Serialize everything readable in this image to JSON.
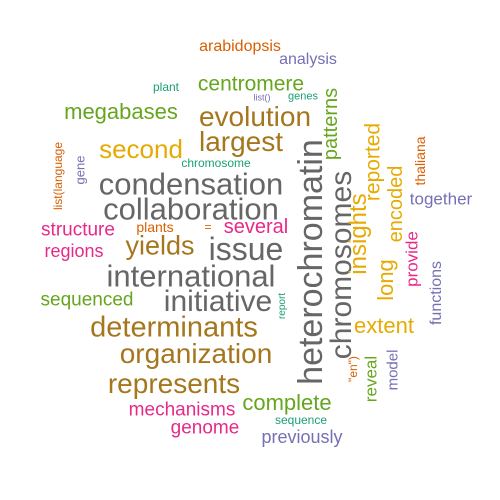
{
  "words": {
    "arabidopsis": "arabidopsis",
    "analysis": "analysis",
    "plant": "plant",
    "centromere": "centromere",
    "list_empty": "list()",
    "genes": "genes",
    "megabases": "megabases",
    "evolution": "evolution",
    "largest": "largest",
    "second": "second",
    "chromosome": "chromosome",
    "condensation": "condensation",
    "collaboration": "collaboration",
    "structure": "structure",
    "plants": "plants",
    "equals": "=",
    "several": "several",
    "regions": "regions",
    "yields": "yields",
    "issue": "issue",
    "international": "international",
    "initiative": "initiative",
    "sequenced": "sequenced",
    "determinants": "determinants",
    "organization": "organization",
    "represents": "represents",
    "mechanisms": "mechanisms",
    "genome": "genome",
    "complete": "complete",
    "sequence": "sequence",
    "previously": "previously",
    "together": "together",
    "functions": "functions",
    "list_language": "list(language",
    "gene": "gene",
    "report": "report",
    "heterochromatin": "heterochromatin",
    "chromosomes": "chromosomes",
    "patterns": "patterns",
    "insights": "insights",
    "reported": "reported",
    "long": "long",
    "encoded": "encoded",
    "thaliana": "thaliana",
    "provide": "provide",
    "extent": "extent",
    "en_quote": "\"en\")",
    "reveal": "reveal",
    "model": "model"
  },
  "colors": {
    "pink": "#e7298a",
    "orange": "#d95f02",
    "gold": "#e6ab02",
    "purple": "#7570b3",
    "teal": "#1b9e77",
    "green": "#66a61e",
    "brown": "#a6761d",
    "gray": "#666666"
  }
}
